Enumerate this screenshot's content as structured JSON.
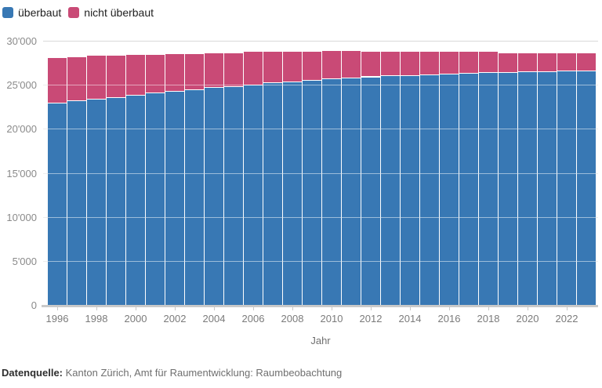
{
  "legend": {
    "items": [
      {
        "label": "überbaut",
        "color": "#3878b4"
      },
      {
        "label": "nicht überbaut",
        "color": "#c94a76"
      }
    ]
  },
  "footer": {
    "source_label": "Datenquelle:",
    "source_text": "Kanton Zürich, Amt für Raumentwicklung: Raumbeobachtung"
  },
  "chart_data": {
    "type": "bar",
    "stacked": true,
    "title": "",
    "xlabel": "Jahr",
    "ylabel": "",
    "ylim": [
      0,
      30000
    ],
    "ytick_step": 5000,
    "ytick_labels": [
      "0",
      "5'000",
      "10'000",
      "15'000",
      "20'000",
      "25'000",
      "30'000"
    ],
    "grid": true,
    "legend_position": "top-left",
    "categories": [
      1996,
      1997,
      1998,
      1999,
      2000,
      2001,
      2002,
      2003,
      2004,
      2005,
      2006,
      2007,
      2008,
      2009,
      2010,
      2011,
      2012,
      2013,
      2014,
      2015,
      2016,
      2017,
      2018,
      2019,
      2020,
      2021,
      2022,
      2023
    ],
    "xtick_years": [
      1996,
      1998,
      2000,
      2002,
      2004,
      2006,
      2008,
      2010,
      2012,
      2014,
      2016,
      2018,
      2020,
      2022
    ],
    "series": [
      {
        "name": "überbaut",
        "color": "#3878b4",
        "values": [
          23000,
          23200,
          23400,
          23600,
          23850,
          24150,
          24300,
          24500,
          24750,
          24850,
          25050,
          25250,
          25400,
          25550,
          25750,
          25850,
          25950,
          26050,
          26100,
          26150,
          26250,
          26350,
          26450,
          26450,
          26500,
          26500,
          26600,
          26650
        ]
      },
      {
        "name": "nicht überbaut",
        "color": "#c94a76",
        "values": [
          5100,
          5050,
          5000,
          4800,
          4650,
          4350,
          4300,
          4100,
          3900,
          3850,
          3750,
          3550,
          3400,
          3250,
          3150,
          3050,
          2900,
          2800,
          2700,
          2650,
          2550,
          2450,
          2350,
          2200,
          2200,
          2150,
          2050,
          2050
        ]
      }
    ]
  }
}
